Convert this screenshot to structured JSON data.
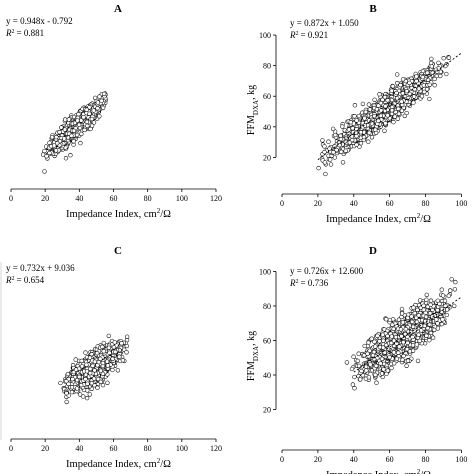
{
  "chart_data": [
    {
      "type": "scatter",
      "panel_label": "A",
      "equation": "y = 0.948x - 0.792",
      "r2_label": "R",
      "r2_value": "= 0.881",
      "xlabel": "Impedance Index, cm",
      "xlabel_suffix": "/Ω",
      "ylabel": "",
      "xlim": [
        0,
        120
      ],
      "ylim": [
        0,
        110
      ],
      "xticks": [
        0,
        20,
        40,
        60,
        80,
        100,
        120
      ],
      "yticks": [],
      "show_y_axis": false,
      "trendline": false,
      "cloud": {
        "x_min": 16,
        "x_max": 60,
        "slope": 0.948,
        "intercept": -0.792,
        "spread": 3.5,
        "n": 900
      }
    },
    {
      "type": "scatter",
      "panel_label": "B",
      "equation": "y = 0.872x + 1.050",
      "r2_label": "R",
      "r2_value": "= 0.921",
      "xlabel": "Impedance Index, cm",
      "xlabel_suffix": "/Ω",
      "ylabel": "FFM",
      "ylabel_sub": "DXA",
      "ylabel_suffix": ", kg",
      "xlim": [
        0,
        102
      ],
      "ylim": [
        0,
        102
      ],
      "xticks": [
        0,
        20,
        40,
        60,
        80,
        100
      ],
      "yticks": [
        20,
        40,
        60,
        80,
        100
      ],
      "show_y_axis": true,
      "trendline": true,
      "trend_x": [
        20,
        100
      ],
      "cloud": {
        "x_min": 16,
        "x_max": 98,
        "slope": 0.872,
        "intercept": 1.05,
        "spread": 4.5,
        "n": 1500
      }
    },
    {
      "type": "scatter",
      "panel_label": "C",
      "equation": "y = 0.732x + 9.036",
      "r2_label": "R",
      "r2_value": "= 0.654",
      "xlabel": "Impedance Index, cm",
      "xlabel_suffix": "/Ω",
      "ylabel": "",
      "xlim": [
        0,
        120
      ],
      "ylim": [
        0,
        110
      ],
      "xticks": [
        0,
        20,
        40,
        60,
        80,
        100,
        120
      ],
      "yticks": [],
      "show_y_axis": false,
      "trendline": false,
      "cloud": {
        "x_min": 27,
        "x_max": 72,
        "slope": 0.732,
        "intercept": 9.036,
        "spread": 5.0,
        "n": 1100
      }
    },
    {
      "type": "scatter",
      "panel_label": "D",
      "equation": "y = 0.726x + 12.600",
      "r2_label": "R",
      "r2_value": "= 0.736",
      "xlabel": "Impedance Index, cm",
      "xlabel_suffix": "/Ω",
      "ylabel": "FFM",
      "ylabel_sub": "DXA",
      "ylabel_suffix": ", kg",
      "xlim": [
        0,
        102
      ],
      "ylim": [
        0,
        102
      ],
      "xticks": [
        0,
        20,
        40,
        60,
        80,
        100
      ],
      "yticks": [
        20,
        40,
        60,
        80,
        100
      ],
      "show_y_axis": true,
      "trendline": true,
      "trend_x": [
        40,
        100
      ],
      "cloud": {
        "x_min": 34,
        "x_max": 100,
        "slope": 0.726,
        "intercept": 12.6,
        "spread": 5.5,
        "n": 1500
      }
    }
  ]
}
